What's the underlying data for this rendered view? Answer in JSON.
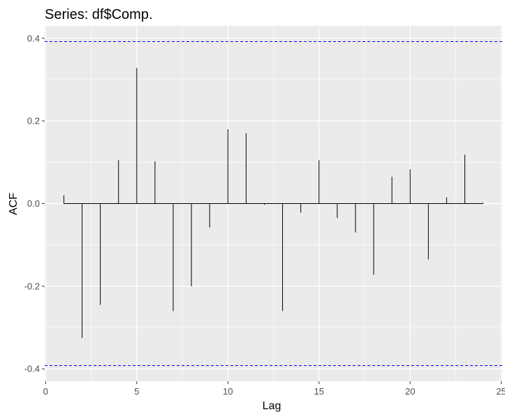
{
  "chart_data": {
    "type": "bar",
    "title": "Series: df$Comp.",
    "xlabel": "Lag",
    "ylabel": "ACF",
    "xlim": [
      0,
      25
    ],
    "ylim": [
      -0.4,
      0.4
    ],
    "x_ticks": [
      0,
      5,
      10,
      15,
      20,
      25
    ],
    "x_tick_labels": [
      "0",
      "5",
      "10",
      "15",
      "20",
      "25"
    ],
    "y_ticks": [
      0.4,
      0.2,
      0.0,
      -0.2,
      -0.4
    ],
    "y_tick_labels": [
      "0.4",
      "0.2",
      "0.0",
      "-0.2",
      "-0.4"
    ],
    "grid": true,
    "lags": [
      1,
      2,
      3,
      4,
      5,
      6,
      7,
      8,
      9,
      10,
      11,
      12,
      13,
      14,
      15,
      16,
      17,
      18,
      19,
      20,
      21,
      22,
      23,
      24
    ],
    "acf": [
      0.02,
      -0.325,
      -0.245,
      0.105,
      0.328,
      0.102,
      -0.26,
      -0.2,
      -0.058,
      0.18,
      0.17,
      -0.003,
      -0.26,
      -0.022,
      0.105,
      -0.035,
      -0.07,
      -0.172,
      0.065,
      0.083,
      -0.135,
      0.015,
      0.118,
      0.002
    ],
    "confidence_bounds": [
      0.392,
      -0.392
    ],
    "colors": {
      "panel_background": "#ebebeb",
      "grid": "#ffffff",
      "bars": "#000000",
      "confidence_lines": "#0000ff"
    }
  }
}
